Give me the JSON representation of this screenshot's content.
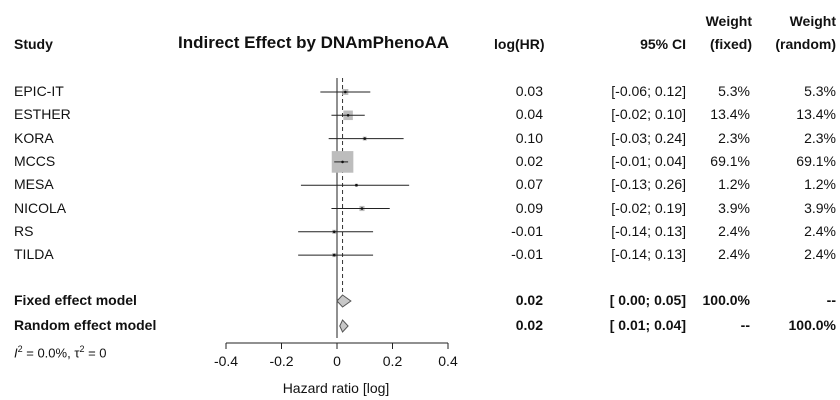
{
  "chart_data": {
    "type": "forest",
    "title": "Indirect Effect by DNAmPhenoAA",
    "xlabel": "Hazard ratio [log]",
    "xlim": [
      -0.4,
      0.4
    ],
    "xticks": [
      "-0.4",
      "-0.2",
      "0",
      "0.2",
      "0.4"
    ],
    "columns": {
      "study": "Study",
      "estimate": "log(HR)",
      "ci": "95% CI",
      "weight_fixed_l1": "Weight",
      "weight_fixed_l2": "(fixed)",
      "weight_random_l1": "Weight",
      "weight_random_l2": "(random)"
    },
    "studies": [
      {
        "name": "EPIC-IT",
        "est": 0.03,
        "lo": -0.06,
        "hi": 0.12,
        "est_text": "0.03",
        "ci_text": "[-0.06; 0.12]",
        "wf": "5.3%",
        "wr": "5.3%",
        "w": 5.3
      },
      {
        "name": "ESTHER",
        "est": 0.04,
        "lo": -0.02,
        "hi": 0.1,
        "est_text": "0.04",
        "ci_text": "[-0.02; 0.10]",
        "wf": "13.4%",
        "wr": "13.4%",
        "w": 13.4
      },
      {
        "name": "KORA",
        "est": 0.1,
        "lo": -0.03,
        "hi": 0.24,
        "est_text": "0.10",
        "ci_text": "[-0.03; 0.24]",
        "wf": "2.3%",
        "wr": "2.3%",
        "w": 2.3
      },
      {
        "name": "MCCS",
        "est": 0.02,
        "lo": -0.01,
        "hi": 0.04,
        "est_text": "0.02",
        "ci_text": "[-0.01; 0.04]",
        "wf": "69.1%",
        "wr": "69.1%",
        "w": 69.1
      },
      {
        "name": "MESA",
        "est": 0.07,
        "lo": -0.13,
        "hi": 0.26,
        "est_text": "0.07",
        "ci_text": "[-0.13; 0.26]",
        "wf": "1.2%",
        "wr": "1.2%",
        "w": 1.2
      },
      {
        "name": "NICOLA",
        "est": 0.09,
        "lo": -0.02,
        "hi": 0.19,
        "est_text": "0.09",
        "ci_text": "[-0.02; 0.19]",
        "wf": "3.9%",
        "wr": "3.9%",
        "w": 3.9
      },
      {
        "name": "RS",
        "est": -0.01,
        "lo": -0.14,
        "hi": 0.13,
        "est_text": "-0.01",
        "ci_text": "[-0.14; 0.13]",
        "wf": "2.4%",
        "wr": "2.4%",
        "w": 2.4
      },
      {
        "name": "TILDA",
        "est": -0.01,
        "lo": -0.14,
        "hi": 0.13,
        "est_text": "-0.01",
        "ci_text": "[-0.14; 0.13]",
        "wf": "2.4%",
        "wr": "2.4%",
        "w": 2.4
      }
    ],
    "fixed": {
      "name": "Fixed effect model",
      "est": 0.02,
      "lo": 0.0,
      "hi": 0.05,
      "est_text": "0.02",
      "ci_text": "[ 0.00; 0.05]",
      "wf": "100.0%",
      "wr": "--"
    },
    "random": {
      "name": "Random effect model",
      "est": 0.02,
      "lo": 0.01,
      "hi": 0.04,
      "est_text": "0.02",
      "ci_text": "[ 0.01; 0.04]",
      "wf": "--",
      "wr": "100.0%"
    },
    "heterogeneity": {
      "i2_value": " = 0.0%, ",
      "tau2_value": " = 0"
    },
    "colors": {
      "square": "#bdbdbd",
      "diamond": "#c8c8c8",
      "line": "#222222"
    }
  }
}
